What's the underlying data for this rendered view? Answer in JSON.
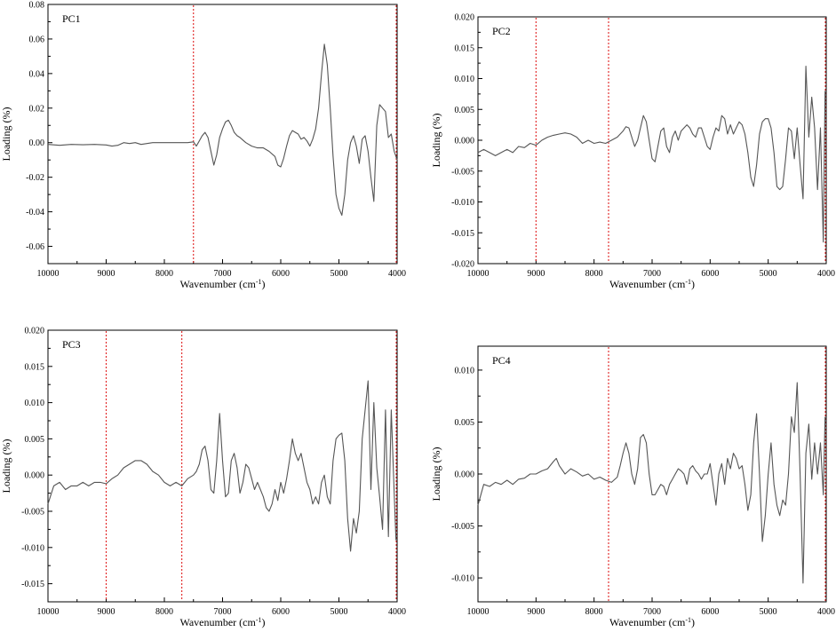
{
  "chart_data": [
    {
      "type": "line",
      "panel_label": "PC1",
      "xlabel": "Wavenumber (cm",
      "xlabel_sup": "-1",
      "xlabel_end": ")",
      "ylabel": "Loading (%)",
      "xlim": [
        10000,
        4000
      ],
      "x_reversed": true,
      "ylim": [
        -0.07,
        0.08
      ],
      "x_ticks": [
        10000,
        9000,
        8000,
        7000,
        6000,
        5000,
        4000
      ],
      "x_tick_labels": [
        "10000",
        "9000",
        "8000",
        "7000",
        "6000",
        "5000",
        "4000"
      ],
      "y_ticks": [
        -0.06,
        -0.04,
        -0.02,
        0.0,
        0.02,
        0.04,
        0.06,
        0.08
      ],
      "y_tick_labels": [
        "-0.06",
        "-0.04",
        "-0.02",
        "0.00",
        "0.02",
        "0.04",
        "0.06",
        "0.08"
      ],
      "vlines": [
        7500,
        4000
      ],
      "line_color": "#555555",
      "vline_color": "#e02020",
      "series": [
        {
          "x": [
            10000,
            9800,
            9600,
            9400,
            9200,
            9000,
            8900,
            8800,
            8700,
            8600,
            8500,
            8400,
            8200,
            8000,
            7800,
            7600,
            7500,
            7450,
            7400,
            7350,
            7300,
            7250,
            7200,
            7150,
            7100,
            7050,
            7000,
            6950,
            6900,
            6850,
            6800,
            6750,
            6700,
            6600,
            6500,
            6400,
            6300,
            6200,
            6100,
            6050,
            6000,
            5950,
            5900,
            5850,
            5800,
            5750,
            5700,
            5650,
            5600,
            5550,
            5500,
            5450,
            5400,
            5350,
            5300,
            5250,
            5200,
            5150,
            5100,
            5050,
            5000,
            4950,
            4900,
            4850,
            4800,
            4750,
            4700,
            4650,
            4600,
            4550,
            4500,
            4450,
            4400,
            4350,
            4300,
            4250,
            4200,
            4150,
            4100,
            4050,
            4000
          ],
          "y": [
            -0.001,
            -0.0015,
            -0.001,
            -0.0012,
            -0.001,
            -0.0013,
            -0.002,
            -0.0015,
            0.0,
            -0.0005,
            0.0,
            -0.001,
            0.0,
            0.0,
            0.0,
            0.0,
            0.0005,
            -0.002,
            0.001,
            0.004,
            0.006,
            0.003,
            -0.005,
            -0.013,
            -0.007,
            0.003,
            0.008,
            0.012,
            0.013,
            0.01,
            0.006,
            0.004,
            0.003,
            0.0,
            -0.002,
            -0.003,
            -0.003,
            -0.005,
            -0.008,
            -0.013,
            -0.014,
            -0.009,
            -0.002,
            0.004,
            0.007,
            0.006,
            0.005,
            0.002,
            0.003,
            0.001,
            -0.002,
            0.002,
            0.008,
            0.02,
            0.04,
            0.057,
            0.045,
            0.02,
            -0.008,
            -0.03,
            -0.038,
            -0.042,
            -0.03,
            -0.01,
            0.0,
            0.004,
            -0.002,
            -0.012,
            0.002,
            0.004,
            -0.005,
            -0.02,
            -0.034,
            0.01,
            0.022,
            0.02,
            0.018,
            0.003,
            0.005,
            -0.005,
            -0.01
          ]
        }
      ]
    },
    {
      "type": "line",
      "panel_label": "PC2",
      "xlabel": "Wavenumber (cm",
      "xlabel_sup": "-1",
      "xlabel_end": ")",
      "ylabel": "Loading (%)",
      "xlim": [
        10000,
        4000
      ],
      "x_reversed": true,
      "ylim": [
        -0.02,
        0.02
      ],
      "x_ticks": [
        10000,
        9000,
        8000,
        7000,
        6000,
        5000,
        4000
      ],
      "x_tick_labels": [
        "10000",
        "9000",
        "8000",
        "7000",
        "6000",
        "5000",
        "4000"
      ],
      "y_ticks": [
        -0.02,
        -0.015,
        -0.01,
        -0.005,
        0.0,
        0.005,
        0.01,
        0.015,
        0.02
      ],
      "y_tick_labels": [
        "-0.020",
        "-0.015",
        "-0.010",
        "-0.005",
        "0.000",
        "0.005",
        "0.010",
        "0.015",
        "0.020"
      ],
      "vlines": [
        9000,
        7750,
        4000
      ],
      "line_color": "#555555",
      "vline_color": "#e02020",
      "series": [
        {
          "x": [
            10000,
            9900,
            9800,
            9700,
            9600,
            9500,
            9400,
            9300,
            9200,
            9100,
            9000,
            8900,
            8800,
            8700,
            8600,
            8500,
            8400,
            8300,
            8200,
            8100,
            8000,
            7900,
            7800,
            7700,
            7600,
            7500,
            7450,
            7400,
            7350,
            7300,
            7250,
            7200,
            7150,
            7100,
            7050,
            7000,
            6950,
            6900,
            6850,
            6800,
            6750,
            6700,
            6650,
            6600,
            6550,
            6500,
            6450,
            6400,
            6350,
            6300,
            6250,
            6200,
            6150,
            6100,
            6050,
            6000,
            5950,
            5900,
            5850,
            5800,
            5750,
            5700,
            5650,
            5600,
            5550,
            5500,
            5450,
            5400,
            5350,
            5300,
            5250,
            5200,
            5150,
            5100,
            5050,
            5000,
            4950,
            4900,
            4850,
            4800,
            4750,
            4700,
            4650,
            4600,
            4550,
            4500,
            4450,
            4400,
            4350,
            4300,
            4250,
            4200,
            4150,
            4100,
            4050,
            4020
          ],
          "y": [
            -0.002,
            -0.0015,
            -0.002,
            -0.0025,
            -0.002,
            -0.0015,
            -0.002,
            -0.001,
            -0.0012,
            -0.0005,
            -0.0008,
            0.0,
            0.0005,
            0.0008,
            0.001,
            0.0012,
            0.001,
            0.0005,
            -0.0005,
            0.0,
            -0.0005,
            -0.0003,
            -0.0005,
            0.0,
            0.0005,
            0.0015,
            0.0022,
            0.002,
            0.0005,
            -0.001,
            0.0,
            0.002,
            0.004,
            0.003,
            0.0,
            -0.003,
            -0.0035,
            -0.001,
            0.0015,
            0.002,
            -0.001,
            -0.002,
            0.0005,
            0.0015,
            0.0,
            0.0015,
            0.002,
            0.0025,
            0.002,
            0.001,
            0.0005,
            0.002,
            0.002,
            0.0005,
            -0.001,
            -0.0015,
            0.0005,
            0.002,
            0.0015,
            0.004,
            0.0035,
            0.001,
            0.0025,
            0.001,
            0.002,
            0.003,
            0.0025,
            0.001,
            -0.002,
            -0.006,
            -0.0075,
            -0.004,
            0.001,
            0.003,
            0.0035,
            0.0035,
            0.002,
            -0.002,
            -0.0075,
            -0.008,
            -0.0075,
            -0.003,
            0.002,
            0.0015,
            -0.003,
            0.002,
            -0.004,
            -0.0095,
            0.012,
            0.0005,
            0.007,
            0.002,
            -0.008,
            0.002,
            -0.0165,
            0.008
          ]
        }
      ]
    },
    {
      "type": "line",
      "panel_label": "PC3",
      "xlabel": "Wavenumber (cm",
      "xlabel_sup": "-1",
      "xlabel_end": ")",
      "ylabel": "Loading (%)",
      "xlim": [
        10000,
        4000
      ],
      "x_reversed": true,
      "ylim": [
        -0.0175,
        0.02
      ],
      "x_ticks": [
        10000,
        9000,
        8000,
        7000,
        6000,
        5000,
        4000
      ],
      "x_tick_labels": [
        "10000",
        "9000",
        "8000",
        "7000",
        "6000",
        "5000",
        "4000"
      ],
      "y_ticks": [
        -0.015,
        -0.01,
        -0.005,
        0.0,
        0.005,
        0.01,
        0.015,
        0.02
      ],
      "y_tick_labels": [
        "-0.015",
        "-0.010",
        "-0.005",
        "0.000",
        "0.005",
        "0.010",
        "0.015",
        "0.020"
      ],
      "vlines": [
        9000,
        7700,
        4000
      ],
      "line_color": "#555555",
      "vline_color": "#e02020",
      "series": [
        {
          "x": [
            10000,
            9900,
            9800,
            9700,
            9600,
            9500,
            9400,
            9300,
            9200,
            9100,
            9000,
            8900,
            8800,
            8700,
            8600,
            8500,
            8400,
            8300,
            8200,
            8100,
            8000,
            7900,
            7800,
            7700,
            7600,
            7500,
            7450,
            7400,
            7350,
            7300,
            7250,
            7200,
            7150,
            7100,
            7050,
            7000,
            6950,
            6900,
            6850,
            6800,
            6750,
            6700,
            6650,
            6600,
            6550,
            6500,
            6450,
            6400,
            6350,
            6300,
            6250,
            6200,
            6150,
            6100,
            6050,
            6000,
            5950,
            5900,
            5850,
            5800,
            5750,
            5700,
            5650,
            5600,
            5550,
            5500,
            5450,
            5400,
            5350,
            5300,
            5250,
            5200,
            5150,
            5100,
            5050,
            5000,
            4950,
            4900,
            4850,
            4800,
            4750,
            4700,
            4650,
            4600,
            4550,
            4500,
            4450,
            4400,
            4350,
            4300,
            4250,
            4200,
            4150,
            4100,
            4050,
            4020
          ],
          "y": [
            -0.004,
            -0.0015,
            -0.001,
            -0.002,
            -0.0015,
            -0.0015,
            -0.001,
            -0.0015,
            -0.001,
            -0.001,
            -0.0012,
            -0.0005,
            0.0,
            0.001,
            0.0015,
            0.002,
            0.002,
            0.0015,
            0.0005,
            0.0,
            -0.001,
            -0.0015,
            -0.001,
            -0.0015,
            -0.0005,
            0.0,
            0.0005,
            0.0015,
            0.0035,
            0.004,
            0.002,
            -0.002,
            -0.0025,
            0.002,
            0.0085,
            0.002,
            -0.003,
            -0.0025,
            0.002,
            0.003,
            0.001,
            -0.0025,
            -0.001,
            0.0015,
            0.001,
            -0.0005,
            -0.002,
            -0.001,
            -0.002,
            -0.003,
            -0.0045,
            -0.005,
            -0.004,
            -0.002,
            -0.0035,
            -0.001,
            -0.0025,
            -0.0005,
            0.002,
            0.005,
            0.003,
            0.002,
            0.003,
            0.001,
            -0.001,
            -0.002,
            -0.004,
            -0.003,
            -0.004,
            -0.001,
            0.0,
            -0.003,
            -0.004,
            0.002,
            0.005,
            0.0055,
            0.0058,
            0.002,
            -0.006,
            -0.0105,
            -0.006,
            -0.008,
            -0.005,
            0.005,
            0.009,
            0.013,
            -0.002,
            0.01,
            0.001,
            -0.003,
            -0.0075,
            0.009,
            -0.0085,
            0.009,
            -0.0025,
            -0.009
          ]
        }
      ]
    },
    {
      "type": "line",
      "panel_label": "PC4",
      "xlabel": "Wavenumber (cm",
      "xlabel_sup": "-1",
      "xlabel_end": ")",
      "ylabel": "Loading (%)",
      "xlim": [
        10000,
        4000
      ],
      "x_reversed": true,
      "ylim": [
        -0.0123,
        0.0123
      ],
      "x_ticks": [
        10000,
        9000,
        8000,
        7000,
        6000,
        5000,
        4000
      ],
      "x_tick_labels": [
        "10000",
        "9000",
        "8000",
        "7000",
        "6000",
        "5000",
        "4000"
      ],
      "y_ticks": [
        -0.01,
        -0.005,
        0.0,
        0.005,
        0.01
      ],
      "y_tick_labels": [
        "-0.010",
        "-0.005",
        "0.000",
        "0.005",
        "0.010"
      ],
      "vlines": [
        7750,
        4000
      ],
      "line_color": "#555555",
      "vline_color": "#e02020",
      "series": [
        {
          "x": [
            10000,
            9900,
            9800,
            9700,
            9600,
            9500,
            9400,
            9300,
            9200,
            9100,
            9000,
            8900,
            8800,
            8700,
            8650,
            8600,
            8500,
            8400,
            8300,
            8200,
            8100,
            8000,
            7900,
            7800,
            7700,
            7600,
            7550,
            7500,
            7450,
            7400,
            7350,
            7300,
            7250,
            7200,
            7150,
            7100,
            7050,
            7000,
            6950,
            6900,
            6850,
            6800,
            6750,
            6700,
            6650,
            6600,
            6550,
            6500,
            6450,
            6400,
            6350,
            6300,
            6250,
            6200,
            6150,
            6100,
            6050,
            6000,
            5950,
            5900,
            5850,
            5800,
            5750,
            5700,
            5650,
            5600,
            5550,
            5500,
            5450,
            5400,
            5350,
            5300,
            5250,
            5200,
            5150,
            5100,
            5050,
            5000,
            4950,
            4900,
            4850,
            4800,
            4750,
            4700,
            4650,
            4600,
            4550,
            4500,
            4450,
            4400,
            4350,
            4300,
            4250,
            4200,
            4150,
            4100,
            4050,
            4020
          ],
          "y": [
            -0.003,
            -0.001,
            -0.0012,
            -0.0008,
            -0.001,
            -0.0006,
            -0.001,
            -0.0005,
            -0.0004,
            0.0,
            0.0,
            0.0003,
            0.0005,
            0.0012,
            0.0015,
            0.0008,
            0.0,
            0.0005,
            0.0002,
            -0.0002,
            0.0,
            -0.0005,
            -0.0003,
            -0.0006,
            -0.0008,
            -0.0003,
            0.0008,
            0.002,
            0.003,
            0.002,
            0.0,
            -0.001,
            0.0005,
            0.0035,
            0.0038,
            0.003,
            0.0,
            -0.002,
            -0.002,
            -0.0015,
            -0.001,
            -0.0012,
            -0.002,
            -0.001,
            -0.0005,
            0.0,
            0.0005,
            0.0003,
            0.0,
            -0.001,
            0.0005,
            0.0008,
            0.0003,
            0.0,
            -0.0005,
            0.0,
            0.0,
            0.001,
            -0.001,
            -0.003,
            0.0,
            0.001,
            -0.001,
            0.0015,
            0.0005,
            0.002,
            0.0015,
            0.0005,
            0.0008,
            -0.001,
            -0.0035,
            -0.002,
            0.003,
            0.0058,
            0.0,
            -0.0065,
            -0.004,
            0.0,
            0.003,
            -0.001,
            -0.003,
            -0.004,
            -0.0025,
            -0.003,
            0.0,
            0.0055,
            0.004,
            0.0088,
            0.0,
            -0.0105,
            0.002,
            0.0048,
            -0.0005,
            0.003,
            0.0,
            0.003,
            -0.002,
            0.0055
          ]
        }
      ]
    }
  ]
}
